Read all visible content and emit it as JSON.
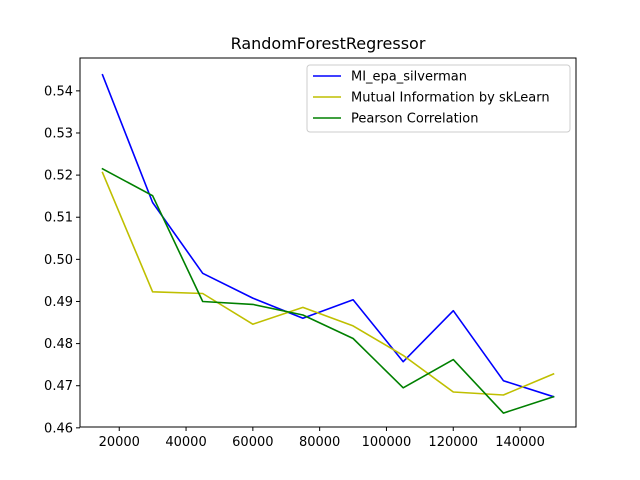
{
  "chart_data": {
    "type": "line",
    "title": "RandomForestRegressor",
    "xlabel": "",
    "ylabel": "",
    "xlim": [
      8250,
      156750
    ],
    "ylim": [
      0.4602,
      0.5478
    ],
    "x_ticks": [
      20000,
      40000,
      60000,
      80000,
      100000,
      120000,
      140000
    ],
    "x_tick_labels": [
      "20000",
      "40000",
      "60000",
      "80000",
      "100000",
      "120000",
      "140000"
    ],
    "y_ticks": [
      0.46,
      0.47,
      0.48,
      0.49,
      0.5,
      0.51,
      0.52,
      0.53,
      0.54
    ],
    "y_tick_labels": [
      "0.46",
      "0.47",
      "0.48",
      "0.49",
      "0.50",
      "0.51",
      "0.52",
      "0.53",
      "0.54"
    ],
    "grid": false,
    "legend_position": "top-right",
    "x": [
      15000,
      30000,
      45000,
      60000,
      75000,
      90000,
      105000,
      120000,
      135000,
      150000
    ],
    "series": [
      {
        "name": "MI_epa_silverman",
        "color": "#0000ff",
        "values": [
          0.5438,
          0.5135,
          0.4967,
          0.4908,
          0.486,
          0.4904,
          0.4757,
          0.4878,
          0.4712,
          0.4674
        ]
      },
      {
        "name": "Mutual Information by skLearn",
        "color": "#bfbf00",
        "values": [
          0.5206,
          0.4923,
          0.4919,
          0.4846,
          0.4886,
          0.4842,
          0.4772,
          0.4685,
          0.4678,
          0.4728
        ]
      },
      {
        "name": "Pearson Correlation",
        "color": "#008000",
        "values": [
          0.5215,
          0.5151,
          0.49,
          0.4893,
          0.4868,
          0.4812,
          0.4695,
          0.4762,
          0.4635,
          0.4674
        ]
      }
    ]
  }
}
